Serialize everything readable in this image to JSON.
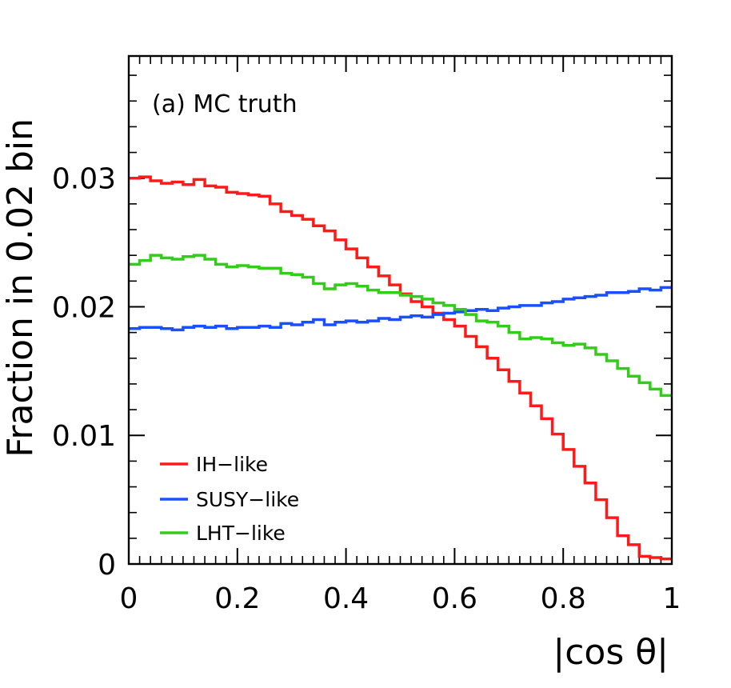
{
  "chart_data": {
    "type": "line",
    "title": "",
    "annotation": "(a) MC truth",
    "xlabel": "|cos θ|",
    "ylabel": "Fraction in 0.02 bin",
    "xlim": [
      0,
      1
    ],
    "ylim": [
      0,
      0.0395
    ],
    "xticks": [
      0,
      0.2,
      0.4,
      0.6,
      0.8,
      1
    ],
    "xtick_labels": [
      "0",
      "0.2",
      "0.4",
      "0.6",
      "0.8",
      "1"
    ],
    "yticks": [
      0,
      0.01,
      0.02,
      0.03
    ],
    "ytick_labels": [
      "0",
      "0.01",
      "0.02",
      "0.03"
    ],
    "bin_width": 0.02,
    "legend_position": "bottom-left",
    "series": [
      {
        "name": "IH−like",
        "color": "#ff1a1a",
        "values": [
          0.03,
          0.0301,
          0.0298,
          0.0296,
          0.0297,
          0.0295,
          0.0299,
          0.0294,
          0.0293,
          0.0289,
          0.0288,
          0.0287,
          0.0286,
          0.028,
          0.0274,
          0.0271,
          0.0268,
          0.0263,
          0.0259,
          0.0252,
          0.0245,
          0.0238,
          0.0231,
          0.0224,
          0.0217,
          0.021,
          0.0204,
          0.02,
          0.0195,
          0.019,
          0.0185,
          0.0177,
          0.0169,
          0.016,
          0.0151,
          0.0142,
          0.0133,
          0.0123,
          0.0113,
          0.0101,
          0.0089,
          0.0076,
          0.0063,
          0.005,
          0.0036,
          0.0022,
          0.0015,
          0.0006,
          0.0005,
          0.0004
        ]
      },
      {
        "name": "SUSY−like",
        "color": "#1a4fff",
        "values": [
          0.0183,
          0.0184,
          0.0184,
          0.0183,
          0.0182,
          0.0184,
          0.0185,
          0.0184,
          0.0185,
          0.0183,
          0.0184,
          0.0184,
          0.0185,
          0.0184,
          0.0187,
          0.0186,
          0.0188,
          0.019,
          0.0186,
          0.0188,
          0.0189,
          0.0188,
          0.0189,
          0.0191,
          0.019,
          0.0192,
          0.0193,
          0.0192,
          0.0194,
          0.0195,
          0.0196,
          0.0197,
          0.0198,
          0.0197,
          0.0199,
          0.02,
          0.0201,
          0.0201,
          0.0203,
          0.0204,
          0.0206,
          0.0207,
          0.0208,
          0.0209,
          0.0211,
          0.0211,
          0.0212,
          0.0214,
          0.0213,
          0.0215
        ]
      },
      {
        "name": "LHT−like",
        "color": "#33cc1a",
        "values": [
          0.0233,
          0.0236,
          0.024,
          0.0238,
          0.0237,
          0.0239,
          0.024,
          0.0237,
          0.0233,
          0.0231,
          0.0232,
          0.0231,
          0.023,
          0.023,
          0.0226,
          0.0225,
          0.0223,
          0.0218,
          0.0214,
          0.0217,
          0.0218,
          0.0216,
          0.0213,
          0.0211,
          0.0211,
          0.0209,
          0.0208,
          0.0206,
          0.0203,
          0.0201,
          0.0198,
          0.0194,
          0.0189,
          0.0188,
          0.0185,
          0.018,
          0.0175,
          0.0176,
          0.0175,
          0.0172,
          0.017,
          0.0171,
          0.0168,
          0.0163,
          0.0158,
          0.0152,
          0.0146,
          0.0141,
          0.0136,
          0.0131
        ]
      }
    ]
  }
}
